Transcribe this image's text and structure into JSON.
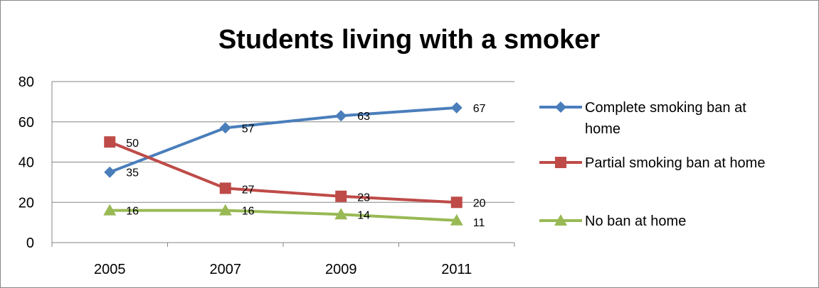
{
  "chart_data": {
    "type": "line",
    "title": "Students living with a smoker",
    "xlabel": "",
    "ylabel": "",
    "categories": [
      "2005",
      "2007",
      "2009",
      "2011"
    ],
    "ylim": [
      0,
      80
    ],
    "yticks": [
      0,
      20,
      40,
      60,
      80
    ],
    "grid": true,
    "legend_position": "right",
    "series": [
      {
        "name": "Complete smoking ban at home",
        "values": [
          35,
          57,
          63,
          67
        ],
        "color": "#4a7ebb",
        "marker": "diamond"
      },
      {
        "name": "Partial smoking ban at home",
        "values": [
          50,
          27,
          23,
          20
        ],
        "color": "#be4b48",
        "marker": "square"
      },
      {
        "name": "No ban at home",
        "values": [
          16,
          16,
          14,
          11
        ],
        "color": "#98b954",
        "marker": "triangle"
      }
    ]
  }
}
